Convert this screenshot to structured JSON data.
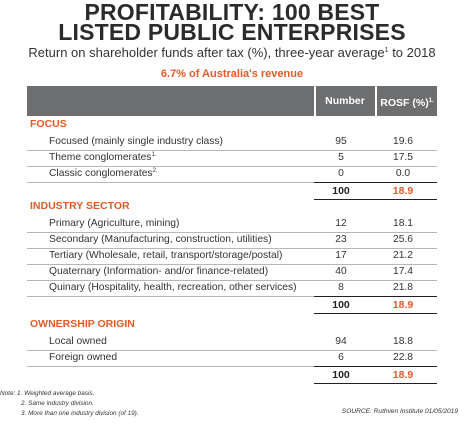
{
  "title_line1": "PROFITABILITY: 100 BEST",
  "title_line2": "LISTED PUBLIC ENTERPRISES",
  "subtitle": "Return on shareholder funds after tax (%), three-year average",
  "subtitle_sup": "1",
  "subtitle_end": " to 2018",
  "tagline": "6.7% of Australia's revenue",
  "columns": {
    "number": "Number",
    "rosf": "ROSF (%)",
    "rosf_sup": "1."
  },
  "sections": [
    {
      "heading": "FOCUS",
      "rows": [
        {
          "label": "Focused (mainly single industry class)",
          "sup": "",
          "number": "95",
          "rosf": "19.6"
        },
        {
          "label": "Theme conglomerates",
          "sup": "1.",
          "number": "5",
          "rosf": "17.5"
        },
        {
          "label": "Classic conglomerates",
          "sup": "2.",
          "number": "0",
          "rosf": "0.0"
        }
      ],
      "total_number": "100",
      "total_rosf": "18.9"
    },
    {
      "heading": "INDUSTRY SECTOR",
      "rows": [
        {
          "label": "Primary (Agriculture, mining)",
          "sup": "",
          "number": "12",
          "rosf": "18.1"
        },
        {
          "label": "Secondary (Manufacturing, construction, utilities)",
          "sup": "",
          "number": "23",
          "rosf": "25.6"
        },
        {
          "label": "Tertiary (Wholesale, retail, transport/storage/postal)",
          "sup": "",
          "number": "17",
          "rosf": "21.2"
        },
        {
          "label": "Quaternary (Information- and/or finance-related)",
          "sup": "",
          "number": "40",
          "rosf": "17.4"
        },
        {
          "label": "Quinary (Hospitality, health, recreation, other services)",
          "sup": "",
          "number": "8",
          "rosf": "21.8"
        }
      ],
      "total_number": "100",
      "total_rosf": "18.9"
    },
    {
      "heading": "OWNERSHIP ORIGIN",
      "rows": [
        {
          "label": "Local owned",
          "sup": "",
          "number": "94",
          "rosf": "18.8"
        },
        {
          "label": "Foreign owned",
          "sup": "",
          "number": "6",
          "rosf": "22.8"
        }
      ],
      "total_number": "100",
      "total_rosf": "18.9"
    }
  ],
  "notes": [
    "Note: 1. Weighted average basis.",
    "2. Same industry division.",
    "3. More than one industry division (of 19)."
  ],
  "source": "SOURCE: Ruthven Institute 01/05/2019"
}
